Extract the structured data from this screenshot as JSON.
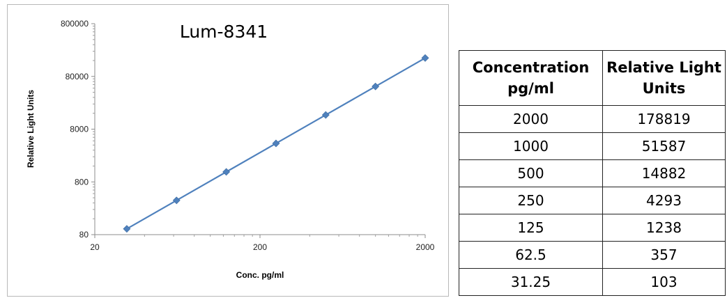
{
  "chart_data": {
    "type": "line",
    "title": "Lum-8341",
    "xlabel": "Conc. pg/ml",
    "ylabel": "Relative Light Units",
    "x_scale": "log",
    "y_scale": "log",
    "xlim": [
      20,
      2000
    ],
    "ylim": [
      80,
      800000
    ],
    "x_ticks": [
      20,
      200,
      2000
    ],
    "y_ticks": [
      80,
      800,
      8000,
      80000,
      800000
    ],
    "x_tick_labels": [
      "20",
      "200",
      "2000"
    ],
    "y_tick_labels": [
      "80",
      "800",
      "8000",
      "80000",
      "800000"
    ],
    "grid": false,
    "legend": "none",
    "series": [
      {
        "color": "#4f81bd",
        "marker": "diamond",
        "x": [
          31.25,
          62.5,
          125,
          250,
          500,
          1000,
          2000
        ],
        "y": [
          103,
          357,
          1238,
          4293,
          14882,
          51587,
          178819
        ]
      }
    ]
  },
  "table": {
    "headers": [
      [
        "Concentration",
        "pg/ml"
      ],
      [
        "Relative Light",
        "Units"
      ]
    ],
    "rows": [
      [
        "2000",
        "178819"
      ],
      [
        "1000",
        "51587"
      ],
      [
        "500",
        "14882"
      ],
      [
        "250",
        "4293"
      ],
      [
        "125",
        "1238"
      ],
      [
        "62.5",
        "357"
      ],
      [
        "31.25",
        "103"
      ]
    ]
  }
}
